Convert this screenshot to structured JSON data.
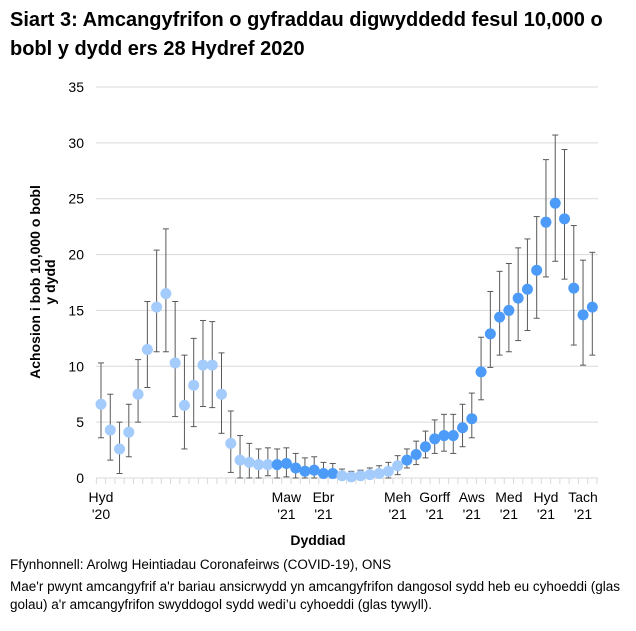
{
  "chart_data": {
    "type": "scatter",
    "title": "Siart 3: Amcangyfrifon o gyfraddau digwyddedd fesul 10,000 o bobl y dydd ers 28 Hydref 2020",
    "xlabel": "Dyddiad",
    "ylabel": "Achosion i bob 10,000 o bobl y dydd",
    "ylim": [
      0,
      35
    ],
    "yticks": [
      0,
      5,
      10,
      15,
      20,
      25,
      30,
      35
    ],
    "grid": true,
    "xtick_labels": [
      {
        "index": 0,
        "line1": "Hyd",
        "line2": "'20"
      },
      {
        "index": 20,
        "line1": "Maw",
        "line2": "'21"
      },
      {
        "index": 24,
        "line1": "Ebr",
        "line2": "'21"
      },
      {
        "index": 32,
        "line1": "Meh",
        "line2": "'21"
      },
      {
        "index": 36,
        "line1": "Gorff",
        "line2": "'21"
      },
      {
        "index": 40,
        "line1": "Aws",
        "line2": "'21"
      },
      {
        "index": 44,
        "line1": "Med",
        "line2": "'21"
      },
      {
        "index": 48,
        "line1": "Hyd",
        "line2": "'21"
      },
      {
        "index": 52,
        "line1": "Tach",
        "line2": "'21"
      }
    ],
    "colors": {
      "unpublished": "#a3cbfb",
      "published": "#4d9bf8",
      "error_bar": "#595959",
      "grid": "#d9d9d9"
    },
    "values": [
      6.6,
      4.3,
      2.6,
      4.1,
      7.5,
      11.5,
      15.3,
      16.5,
      10.3,
      6.5,
      8.3,
      10.1,
      10.1,
      7.5,
      3.1,
      1.6,
      1.4,
      1.2,
      1.2,
      1.2,
      1.3,
      0.9,
      0.6,
      0.7,
      0.4,
      0.4,
      0.2,
      0.1,
      0.2,
      0.3,
      0.4,
      0.6,
      1.1,
      1.6,
      2.1,
      2.8,
      3.5,
      3.8,
      3.8,
      4.5,
      5.3,
      9.5,
      12.9,
      14.4,
      15.0,
      16.1,
      16.9,
      18.6,
      22.9,
      24.6,
      23.2,
      17.0,
      14.6,
      15.3
    ],
    "lower": [
      3.6,
      1.6,
      0.4,
      1.9,
      5.0,
      8.1,
      11.3,
      11.3,
      5.5,
      2.6,
      4.6,
      6.4,
      6.3,
      4.0,
      0.5,
      0,
      0,
      0,
      0.2,
      0,
      0.1,
      0,
      0,
      0,
      0,
      0,
      0,
      0,
      0,
      0,
      0,
      0,
      0.3,
      0.9,
      1.2,
      1.8,
      2.2,
      2.4,
      2.2,
      2.8,
      3.6,
      7.0,
      9.9,
      11.0,
      11.3,
      12.3,
      13.2,
      14.3,
      18.0,
      19.4,
      17.8,
      11.9,
      10.1,
      11.0
    ],
    "upper": [
      10.3,
      7.5,
      5.0,
      6.6,
      10.6,
      15.8,
      20.4,
      22.3,
      15.8,
      11.0,
      12.5,
      14.1,
      14.0,
      11.2,
      6.0,
      3.8,
      3.1,
      2.6,
      2.7,
      2.6,
      2.7,
      2.2,
      1.8,
      1.9,
      1.4,
      1.3,
      0.8,
      0.6,
      0.7,
      0.9,
      1.1,
      1.4,
      2.0,
      2.6,
      3.3,
      4.2,
      5.2,
      5.7,
      5.7,
      6.6,
      7.6,
      12.6,
      16.7,
      18.5,
      19.2,
      20.6,
      21.4,
      23.4,
      28.5,
      30.7,
      29.4,
      22.6,
      19.5,
      20.2
    ],
    "published": [
      false,
      false,
      false,
      false,
      false,
      false,
      false,
      false,
      false,
      false,
      false,
      false,
      false,
      false,
      false,
      false,
      false,
      false,
      false,
      true,
      true,
      true,
      true,
      true,
      true,
      true,
      false,
      false,
      false,
      false,
      false,
      false,
      false,
      true,
      true,
      true,
      true,
      true,
      true,
      true,
      true,
      true,
      true,
      true,
      true,
      true,
      true,
      true,
      true,
      true,
      true,
      true,
      true,
      true
    ]
  },
  "footnotes": {
    "source": "Ffynhonnell: Arolwg Heintiadau Coronafeirws (COVID-19), ONS",
    "note": "Mae'r pwynt amcangyfrif a'r bariau ansicrwydd yn amcangyfrifon dangosol sydd heb eu cyhoeddi (glas golau) a'r amcangyfrifon swyddogol sydd wedi’u cyhoeddi (glas tywyll)."
  }
}
